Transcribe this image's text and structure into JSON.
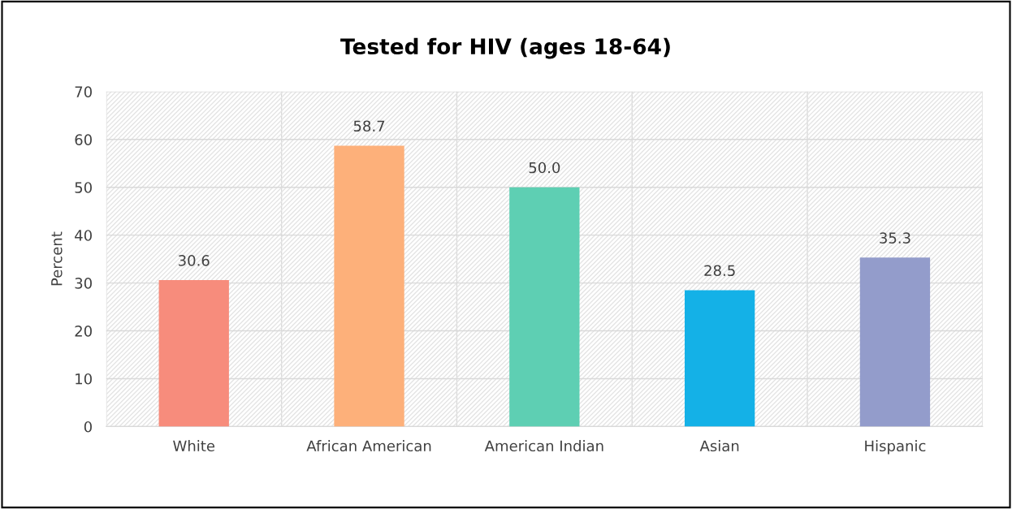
{
  "chart_data": {
    "type": "bar",
    "title": "Tested for HIV (ages 18-64)",
    "ylabel": "Percent",
    "categories": [
      "White",
      "African American",
      "American Indian",
      "Asian",
      "Hispanic"
    ],
    "values": [
      30.6,
      58.7,
      50.0,
      28.5,
      35.3
    ],
    "colors": [
      "#f78c7c",
      "#fdb07a",
      "#5ecfb3",
      "#14b1e7",
      "#939ccb"
    ],
    "value_labels": [
      "30.6",
      "58.7",
      "50.0",
      "28.5",
      "35.3"
    ],
    "ylim": [
      0,
      70
    ],
    "yticks": [
      0,
      10,
      20,
      30,
      40,
      50,
      60,
      70
    ],
    "grid": true,
    "legend": false
  }
}
